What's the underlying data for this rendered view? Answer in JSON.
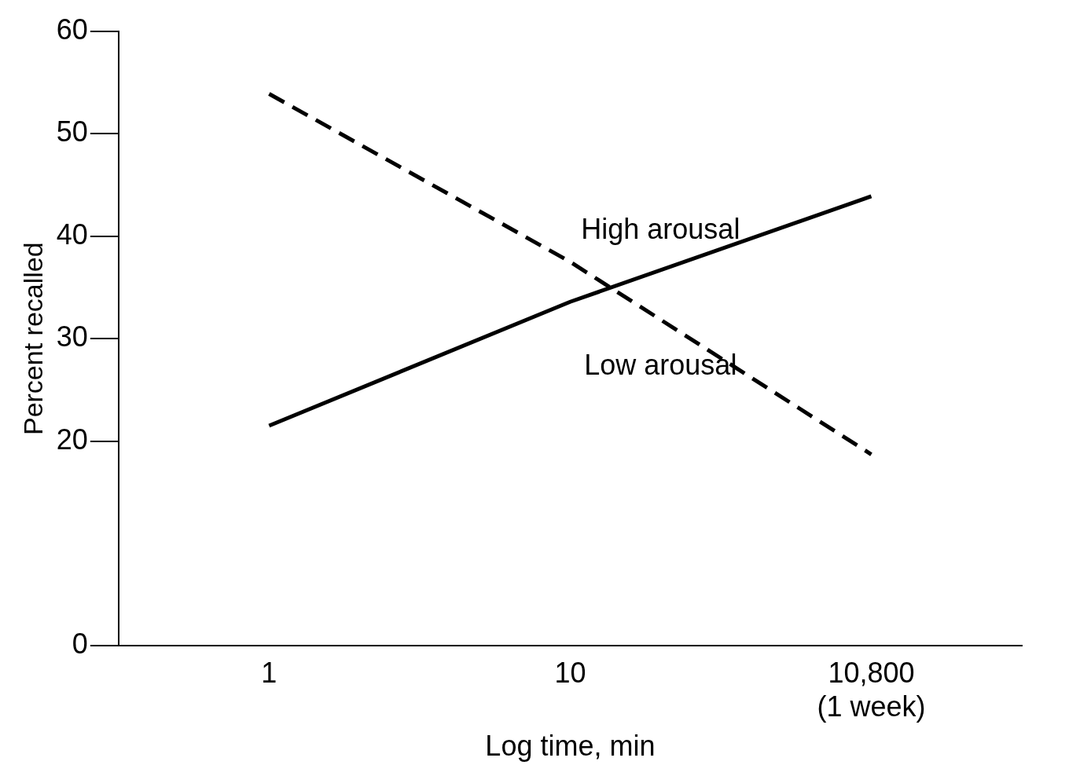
{
  "chart_data": {
    "type": "line",
    "xlabel": "Log time, min",
    "ylabel": "Percent recalled",
    "categories": [
      "1",
      "10",
      "10,800\n(1 week)"
    ],
    "series": [
      {
        "name": "High arousal",
        "color": "#000000",
        "values": [
          21.5,
          33.6,
          43.9
        ],
        "line_style": "solid"
      },
      {
        "name": "Low arousal",
        "color": "#000000",
        "values": [
          53.9,
          37.5,
          18.7
        ],
        "line_style": "dashed"
      }
    ],
    "ylim": [
      0,
      60
    ],
    "yticks": [
      0,
      20,
      30,
      40,
      50,
      60
    ],
    "grid": false,
    "legend": false,
    "marker": "none"
  }
}
